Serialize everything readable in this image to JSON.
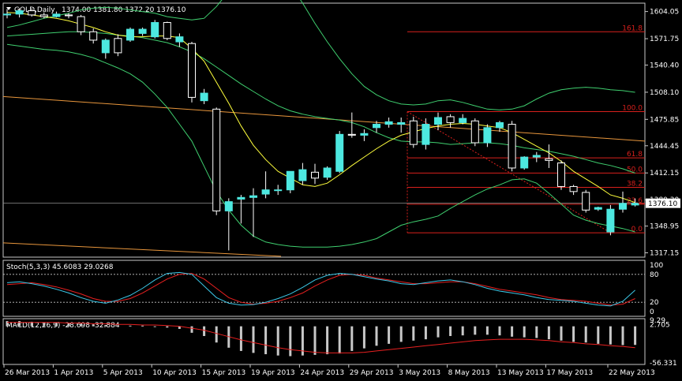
{
  "header": {
    "symbol_label": "GOLD,Daily",
    "ohlc": "1374.00 1381.80 1372.20 1376.10"
  },
  "colors": {
    "background": "#000000",
    "bull": "#4de8e0",
    "bear": "#ffffff",
    "grid_border": "#c8c8c8",
    "yellow_ma": "#ffff3c",
    "green_band": "#3fcf6f",
    "orange_trend": "#e8963c",
    "fib": "#d8201c",
    "stoch_main": "#3cc8e8",
    "stoch_signal": "#e82020",
    "macd_hist": "#c8c8c8",
    "macd_signal": "#e82020"
  },
  "price_panel": {
    "y_ticks": [
      "1604.05",
      "1571.75",
      "1540.40",
      "1508.10",
      "1475.85",
      "1444.45",
      "1412.15",
      "1380.30",
      "1348.95",
      "1317.15"
    ],
    "current_price_label": "1376.10",
    "fib_levels": [
      {
        "label": "161.8",
        "price": 1580.0
      },
      {
        "label": "100.0",
        "price": 1485.0
      },
      {
        "label": "61.8",
        "price": 1430.0
      },
      {
        "label": "50.0",
        "price": 1412.0
      },
      {
        "label": "38.2",
        "price": 1395.0
      },
      {
        "label": "23.6",
        "price": 1375.0
      },
      {
        "label": "0.0",
        "price": 1341.0
      }
    ]
  },
  "stoch_panel": {
    "label": "Stoch(5,3,3) 45.6083 29.0268",
    "ticks": [
      "100",
      "80",
      "20",
      "0"
    ]
  },
  "macd_panel": {
    "label": "MACD(12,26,9) -28.698 -32.884",
    "ticks": [
      "9.29",
      "2.705",
      "-56.331"
    ]
  },
  "x_axis": {
    "labels": [
      "26 Mar 2013",
      "1 Apr 2013",
      "5 Apr 2013",
      "10 Apr 2013",
      "15 Apr 2013",
      "19 Apr 2013",
      "24 Apr 2013",
      "29 Apr 2013",
      "3 May 2013",
      "8 May 2013",
      "13 May 2013",
      "17 May 2013",
      "22 May 2013"
    ]
  },
  "chart_data": {
    "type": "candlestick",
    "candles": [
      {
        "o": 1600,
        "h": 1607,
        "l": 1596,
        "c": 1601
      },
      {
        "o": 1601,
        "h": 1608,
        "l": 1597,
        "c": 1605
      },
      {
        "o": 1605,
        "h": 1608,
        "l": 1598,
        "c": 1600
      },
      {
        "o": 1600,
        "h": 1603,
        "l": 1596,
        "c": 1598
      },
      {
        "o": 1598,
        "h": 1604,
        "l": 1597,
        "c": 1601
      },
      {
        "o": 1600,
        "h": 1602,
        "l": 1596,
        "c": 1599
      },
      {
        "o": 1598,
        "h": 1600,
        "l": 1576,
        "c": 1580
      },
      {
        "o": 1580,
        "h": 1584,
        "l": 1566,
        "c": 1570
      },
      {
        "o": 1555,
        "h": 1572,
        "l": 1548,
        "c": 1570
      },
      {
        "o": 1572,
        "h": 1577,
        "l": 1551,
        "c": 1555
      },
      {
        "o": 1570,
        "h": 1585,
        "l": 1568,
        "c": 1583
      },
      {
        "o": 1578,
        "h": 1585,
        "l": 1575,
        "c": 1583
      },
      {
        "o": 1574,
        "h": 1594,
        "l": 1572,
        "c": 1591
      },
      {
        "o": 1591,
        "h": 1592,
        "l": 1570,
        "c": 1572
      },
      {
        "o": 1568,
        "h": 1578,
        "l": 1562,
        "c": 1574
      },
      {
        "o": 1566,
        "h": 1568,
        "l": 1496,
        "c": 1502
      },
      {
        "o": 1498,
        "h": 1512,
        "l": 1494,
        "c": 1507
      },
      {
        "o": 1488,
        "h": 1490,
        "l": 1362,
        "c": 1367
      },
      {
        "o": 1367,
        "h": 1382,
        "l": 1320,
        "c": 1378
      },
      {
        "o": 1381,
        "h": 1386,
        "l": 1352,
        "c": 1383
      },
      {
        "o": 1383,
        "h": 1394,
        "l": 1336,
        "c": 1385
      },
      {
        "o": 1387,
        "h": 1414,
        "l": 1382,
        "c": 1392
      },
      {
        "o": 1392,
        "h": 1398,
        "l": 1386,
        "c": 1392
      },
      {
        "o": 1392,
        "h": 1412,
        "l": 1388,
        "c": 1414
      },
      {
        "o": 1403,
        "h": 1424,
        "l": 1398,
        "c": 1416
      },
      {
        "o": 1413,
        "h": 1423,
        "l": 1399,
        "c": 1406
      },
      {
        "o": 1407,
        "h": 1420,
        "l": 1404,
        "c": 1418
      },
      {
        "o": 1414,
        "h": 1462,
        "l": 1412,
        "c": 1458
      },
      {
        "o": 1458,
        "h": 1484,
        "l": 1454,
        "c": 1457
      },
      {
        "o": 1457,
        "h": 1464,
        "l": 1450,
        "c": 1459
      },
      {
        "o": 1466,
        "h": 1474,
        "l": 1460,
        "c": 1470
      },
      {
        "o": 1470,
        "h": 1478,
        "l": 1466,
        "c": 1473
      },
      {
        "o": 1470,
        "h": 1478,
        "l": 1460,
        "c": 1472
      },
      {
        "o": 1474,
        "h": 1479,
        "l": 1442,
        "c": 1446
      },
      {
        "o": 1446,
        "h": 1477,
        "l": 1440,
        "c": 1470
      },
      {
        "o": 1470,
        "h": 1484,
        "l": 1463,
        "c": 1478
      },
      {
        "o": 1479,
        "h": 1482,
        "l": 1466,
        "c": 1472
      },
      {
        "o": 1472,
        "h": 1482,
        "l": 1470,
        "c": 1477
      },
      {
        "o": 1474,
        "h": 1477,
        "l": 1444,
        "c": 1448
      },
      {
        "o": 1448,
        "h": 1470,
        "l": 1443,
        "c": 1466
      },
      {
        "o": 1466,
        "h": 1474,
        "l": 1461,
        "c": 1472
      },
      {
        "o": 1470,
        "h": 1474,
        "l": 1414,
        "c": 1418
      },
      {
        "o": 1418,
        "h": 1432,
        "l": 1416,
        "c": 1431
      },
      {
        "o": 1431,
        "h": 1437,
        "l": 1425,
        "c": 1433
      },
      {
        "o": 1429,
        "h": 1446,
        "l": 1418,
        "c": 1427
      },
      {
        "o": 1424,
        "h": 1427,
        "l": 1392,
        "c": 1396
      },
      {
        "o": 1396,
        "h": 1398,
        "l": 1386,
        "c": 1390
      },
      {
        "o": 1389,
        "h": 1392,
        "l": 1365,
        "c": 1368
      },
      {
        "o": 1369,
        "h": 1372,
        "l": 1367,
        "c": 1371
      },
      {
        "o": 1342,
        "h": 1374,
        "l": 1338,
        "c": 1369
      },
      {
        "o": 1369,
        "h": 1390,
        "l": 1365,
        "c": 1376
      },
      {
        "o": 1374,
        "h": 1381.8,
        "l": 1372.2,
        "c": 1376.1
      }
    ],
    "yellow_ma": [
      1603,
      1602,
      1600,
      1598,
      1596,
      1593,
      1589,
      1585,
      1580,
      1576,
      1574,
      1574,
      1575,
      1575,
      1573,
      1560,
      1545,
      1520,
      1495,
      1468,
      1445,
      1428,
      1414,
      1406,
      1398,
      1396,
      1400,
      1410,
      1421,
      1431,
      1441,
      1450,
      1457,
      1461,
      1465,
      1468,
      1470,
      1471,
      1470,
      1468,
      1466,
      1460,
      1452,
      1444,
      1436,
      1426,
      1414,
      1405,
      1396,
      1386,
      1382,
      1377
    ],
    "band_upper": [
      1585,
      1588,
      1592,
      1596,
      1599,
      1602,
      1606,
      1608,
      1609,
      1608,
      1606,
      1604,
      1602,
      1598,
      1596,
      1594,
      1596,
      1610,
      1628,
      1645,
      1656,
      1658,
      1650,
      1636,
      1614,
      1590,
      1568,
      1548,
      1530,
      1515,
      1505,
      1498,
      1494,
      1493,
      1494,
      1498,
      1499,
      1496,
      1492,
      1488,
      1487,
      1488,
      1492,
      1500,
      1507,
      1511,
      1513,
      1514,
      1513,
      1511,
      1510,
      1508
    ],
    "band_middle": [
      1575,
      1576,
      1577,
      1578,
      1579,
      1580,
      1580,
      1579,
      1578,
      1576,
      1575,
      1573,
      1570,
      1567,
      1562,
      1556,
      1548,
      1538,
      1528,
      1518,
      1509,
      1500,
      1492,
      1486,
      1482,
      1479,
      1477,
      1475,
      1472,
      1467,
      1460,
      1454,
      1450,
      1449,
      1449,
      1448,
      1446,
      1447,
      1448,
      1448,
      1447,
      1445,
      1442,
      1440,
      1438,
      1435,
      1432,
      1428,
      1424,
      1421,
      1417,
      1412
    ],
    "band_lower": [
      1565,
      1563,
      1561,
      1559,
      1558,
      1556,
      1553,
      1549,
      1543,
      1537,
      1530,
      1520,
      1506,
      1490,
      1470,
      1450,
      1420,
      1390,
      1368,
      1350,
      1337,
      1330,
      1327,
      1325,
      1324,
      1324,
      1324,
      1325,
      1327,
      1330,
      1334,
      1342,
      1350,
      1354,
      1357,
      1361,
      1370,
      1378,
      1386,
      1393,
      1398,
      1404,
      1405,
      1400,
      1388,
      1375,
      1362,
      1356,
      1352,
      1349,
      1346,
      1342
    ],
    "stoch_main": [
      62,
      64,
      60,
      55,
      48,
      40,
      30,
      22,
      18,
      25,
      35,
      50,
      68,
      82,
      84,
      80,
      55,
      30,
      18,
      14,
      15,
      20,
      28,
      38,
      52,
      68,
      78,
      82,
      80,
      75,
      70,
      66,
      60,
      58,
      62,
      66,
      68,
      64,
      58,
      50,
      44,
      40,
      36,
      30,
      26,
      24,
      22,
      18,
      14,
      12,
      22,
      46
    ],
    "stoch_signal": [
      58,
      60,
      62,
      58,
      53,
      46,
      38,
      28,
      22,
      22,
      28,
      40,
      55,
      70,
      80,
      82,
      70,
      50,
      30,
      20,
      16,
      18,
      22,
      30,
      40,
      55,
      68,
      78,
      80,
      78,
      72,
      68,
      64,
      60,
      60,
      62,
      64,
      64,
      60,
      54,
      48,
      44,
      40,
      36,
      30,
      26,
      24,
      22,
      18,
      14,
      16,
      28
    ],
    "macd_hist": [
      8,
      8,
      7,
      6,
      6,
      5,
      4,
      3,
      2,
      1,
      1,
      1,
      0,
      -2,
      -4,
      -10,
      -15,
      -25,
      -33,
      -38,
      -41,
      -43,
      -45,
      -46,
      -45,
      -44,
      -43,
      -42,
      -38,
      -34,
      -30,
      -27,
      -24,
      -22,
      -20,
      -17,
      -15,
      -14,
      -13,
      -13,
      -14,
      -16,
      -17,
      -18,
      -20,
      -22,
      -24,
      -25,
      -27,
      -28,
      -29,
      -28.698
    ],
    "macd_signal": [
      6,
      6,
      6,
      6,
      6,
      5,
      5,
      4,
      4,
      3,
      3,
      2,
      2,
      1,
      0,
      -3,
      -6,
      -11,
      -16,
      -21,
      -25,
      -29,
      -33,
      -36,
      -38,
      -40,
      -41,
      -41,
      -41,
      -40,
      -38,
      -36,
      -34,
      -32,
      -30,
      -28,
      -26,
      -24,
      -22,
      -21,
      -20,
      -20,
      -20,
      -21,
      -22,
      -24,
      -25,
      -27,
      -28,
      -30,
      -31,
      -32.884
    ]
  }
}
